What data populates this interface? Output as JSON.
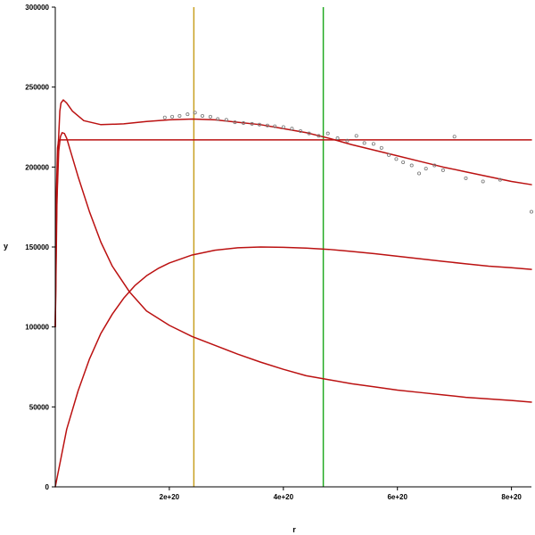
{
  "chart_data": {
    "type": "line",
    "xlabel": "r",
    "ylabel": "y",
    "xlim": [
      0,
      8.35e+20
    ],
    "ylim": [
      0,
      300000
    ],
    "grid": false,
    "legend": "none",
    "x_ticks": [
      {
        "value": 2e+20,
        "label": "2e+20"
      },
      {
        "value": 4e+20,
        "label": "4e+20"
      },
      {
        "value": 6e+20,
        "label": "6e+20"
      },
      {
        "value": 8e+20,
        "label": "8e+20"
      }
    ],
    "y_ticks": [
      {
        "value": 0,
        "label": "0"
      },
      {
        "value": 50000,
        "label": "50000"
      },
      {
        "value": 100000,
        "label": "100000"
      },
      {
        "value": 150000,
        "label": "150000"
      },
      {
        "value": 200000,
        "label": "200000"
      },
      {
        "value": 250000,
        "label": "250000"
      },
      {
        "value": 300000,
        "label": "300000"
      }
    ],
    "vertical_lines": [
      {
        "x": 2.43e+20,
        "color": "#c8a020"
      },
      {
        "x": 4.7e+20,
        "color": "#22aa22"
      }
    ],
    "series": [
      {
        "id": "total",
        "color": "#bb1111",
        "x": [
          0,
          2e+18,
          5e+18,
          8e+18,
          1e+19,
          1.4e+19,
          2e+19,
          3e+19,
          5e+19,
          8e+19,
          1.2e+20,
          1.6e+20,
          2e+20,
          2.4e+20,
          2.8e+20,
          3.2e+20,
          3.6e+20,
          4e+20,
          4.4e+20,
          4.8e+20,
          5.2e+20,
          5.6e+20,
          6e+20,
          6.4e+20,
          6.8e+20,
          7.2e+20,
          7.6e+20,
          8e+20,
          8.35e+20
        ],
        "y": [
          100000,
          165000,
          212000,
          235000,
          240000,
          242000,
          240000,
          235000,
          229000,
          226500,
          227000,
          228500,
          229500,
          230000,
          229500,
          228000,
          226500,
          224000,
          221500,
          218000,
          214000,
          210500,
          207000,
          203500,
          200000,
          197000,
          194000,
          191000,
          189000
        ]
      },
      {
        "id": "flat",
        "color": "#bb1111",
        "x": [
          0,
          2e+18,
          4e+18,
          6e+18,
          1e+19,
          3e+19,
          8.35e+20
        ],
        "y": [
          100000,
          185000,
          212000,
          217000,
          217000,
          217000,
          217000
        ]
      },
      {
        "id": "decreasing",
        "color": "#bb1111",
        "x": [
          0,
          3e+18,
          6e+18,
          9e+18,
          1.2e+19,
          1.6e+19,
          2e+19,
          3e+19,
          4e+19,
          6e+19,
          8e+19,
          1e+20,
          1.3e+20,
          1.6e+20,
          2e+20,
          2.4e+20,
          2.8e+20,
          3.2e+20,
          3.6e+20,
          4e+20,
          4.4e+20,
          4.8e+20,
          5.2e+20,
          5.6e+20,
          6e+20,
          6.4e+20,
          6.8e+20,
          7.2e+20,
          7.6e+20,
          8e+20,
          8.35e+20
        ],
        "y": [
          100000,
          180000,
          210000,
          219000,
          221500,
          221000,
          218000,
          206000,
          194000,
          172000,
          153000,
          138000,
          122000,
          110000,
          101000,
          94000,
          88500,
          83000,
          78000,
          73500,
          69500,
          67000,
          64500,
          62500,
          60500,
          59000,
          57500,
          56000,
          55000,
          54000,
          53000
        ]
      },
      {
        "id": "increasing",
        "color": "#bb1111",
        "x": [
          0,
          1e+19,
          2e+19,
          4e+19,
          6e+19,
          8e+19,
          1e+20,
          1.2e+20,
          1.4e+20,
          1.6e+20,
          1.8e+20,
          2e+20,
          2.4e+20,
          2.8e+20,
          3.2e+20,
          3.6e+20,
          4e+20,
          4.4e+20,
          4.8e+20,
          5.2e+20,
          5.6e+20,
          6e+20,
          6.4e+20,
          6.8e+20,
          7.2e+20,
          7.6e+20,
          8e+20,
          8.35e+20
        ],
        "y": [
          0,
          18000,
          36000,
          60000,
          80000,
          96000,
          108000,
          118000,
          126000,
          132000,
          136500,
          140000,
          145000,
          148000,
          149500,
          150000,
          149800,
          149300,
          148500,
          147200,
          145800,
          144200,
          142600,
          141000,
          139500,
          138000,
          137000,
          136000
        ]
      }
    ],
    "scatter": {
      "color": "#777777",
      "x": [
        1.92e+20,
        2.05e+20,
        2.18e+20,
        2.32e+20,
        2.45e+20,
        2.58e+20,
        2.72e+20,
        2.85e+20,
        3e+20,
        3.15e+20,
        3.3e+20,
        3.45e+20,
        3.58e+20,
        3.72e+20,
        3.85e+20,
        4e+20,
        4.15e+20,
        4.3e+20,
        4.45e+20,
        4.62e+20,
        4.78e+20,
        4.95e+20,
        5.12e+20,
        5.28e+20,
        5.42e+20,
        5.58e+20,
        5.72e+20,
        5.85e+20,
        5.98e+20,
        6.1e+20,
        6.25e+20,
        6.38e+20,
        6.5e+20,
        6.65e+20,
        6.8e+20,
        7e+20,
        7.2e+20,
        7.5e+20,
        7.8e+20,
        8.35e+20
      ],
      "y": [
        231000,
        231500,
        232000,
        233000,
        234000,
        232000,
        231500,
        230000,
        229500,
        228000,
        227500,
        227000,
        226500,
        226000,
        225500,
        225000,
        224000,
        222500,
        221000,
        219500,
        221000,
        218000,
        216500,
        219500,
        215000,
        214500,
        212000,
        207500,
        205000,
        203000,
        201000,
        196000,
        199000,
        201000,
        198000,
        219000,
        193000,
        191000,
        192000,
        172000
      ]
    }
  }
}
